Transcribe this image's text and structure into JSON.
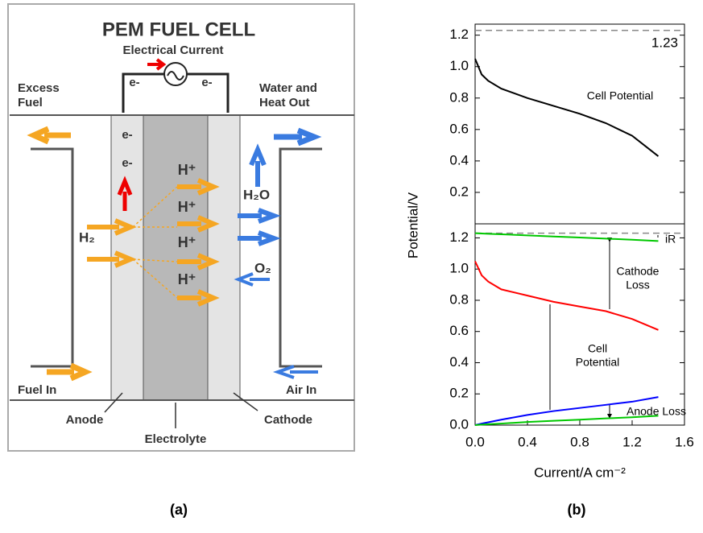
{
  "diagram": {
    "title": "PEM FUEL CELL",
    "current": "Electrical Current",
    "electrons": [
      "e-",
      "e-",
      "e-",
      "e-"
    ],
    "excess_fuel": [
      "Excess",
      "Fuel"
    ],
    "water_heat": [
      "Water and",
      "Heat Out"
    ],
    "h2": "H₂",
    "protons": [
      "H⁺",
      "H⁺",
      "H⁺",
      "H⁺"
    ],
    "h2o": "H₂O",
    "o2": "O₂",
    "fuel_in": "Fuel In",
    "air_in": "Air In",
    "anode": "Anode",
    "electrolyte": "Electrolyte",
    "cathode": "Cathode"
  },
  "captions": [
    "(a)",
    "(b)"
  ],
  "chart_data": [
    {
      "type": "line",
      "ylabel": "Potential/V",
      "x": [
        0,
        0.05,
        0.1,
        0.2,
        0.4,
        0.6,
        0.8,
        1.0,
        1.2,
        1.4
      ],
      "series": [
        {
          "color": "#000000",
          "values": [
            1.05,
            0.95,
            0.91,
            0.86,
            0.8,
            0.75,
            0.7,
            0.64,
            0.56,
            0.43
          ]
        }
      ],
      "ref_line": 1.23,
      "annotations": [
        [
          "Cell Potential"
        ]
      ],
      "xlim": [
        0,
        1.6
      ],
      "ylim": [
        0,
        1.27
      ],
      "yticks": [
        0.2,
        0.4,
        0.6,
        0.8,
        {
          "value": 1,
          "label": "1.0"
        },
        1.2
      ]
    },
    {
      "type": "line",
      "xlabel": "Current/A cm⁻²",
      "x": [
        0,
        0.05,
        0.1,
        0.2,
        0.4,
        0.6,
        0.8,
        1.0,
        1.2,
        1.4
      ],
      "series": [
        {
          "color": "#00c800",
          "values": [
            1.23,
            1.228,
            1.226,
            1.223,
            1.216,
            1.209,
            1.202,
            1.195,
            1.188,
            1.18
          ]
        },
        {
          "color": "#ff0000",
          "values": [
            1.05,
            0.96,
            0.92,
            0.87,
            0.83,
            0.79,
            0.76,
            0.73,
            0.68,
            0.61
          ]
        },
        {
          "color": "#0000ff",
          "values": [
            0,
            0.01,
            0.018,
            0.035,
            0.065,
            0.09,
            0.11,
            0.13,
            0.15,
            0.18
          ]
        },
        {
          "color": "#00c800",
          "values": [
            0,
            0.003,
            0.006,
            0.01,
            0.02,
            0.028,
            0.035,
            0.043,
            0.05,
            0.06
          ]
        }
      ],
      "ref_line": 1.23,
      "annotations": [
        [
          "iR"
        ],
        [
          "Cathode",
          "Loss"
        ],
        [
          "Cell",
          "Potential"
        ],
        [
          "Anode Loss"
        ]
      ],
      "xlim": [
        0,
        1.6
      ],
      "ylim": [
        0,
        1.29
      ],
      "xticks": [
        {
          "value": 0,
          "label": "0.0"
        },
        0.4,
        0.8,
        1.2,
        1.6
      ],
      "yticks": [
        {
          "value": 0,
          "label": "0.0"
        },
        0.2,
        0.4,
        0.6,
        0.8,
        {
          "value": 1,
          "label": "1.0"
        },
        1.2
      ]
    }
  ]
}
